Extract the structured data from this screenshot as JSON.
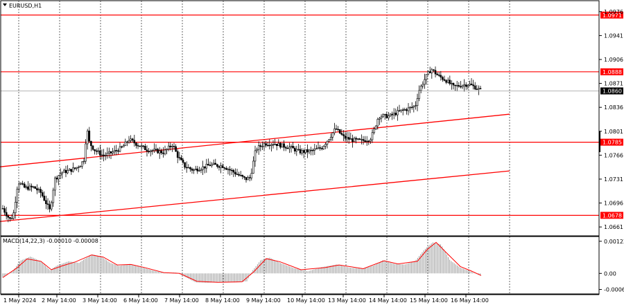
{
  "window": {
    "symbol_label": "EURUSD,H1"
  },
  "indicator": {
    "label": "MACD(14,22,3) -0.00010 -0.00008"
  },
  "colors": {
    "level_line": "#ff0000",
    "candle": "#000000",
    "histogram": "#9a9a9a",
    "signal": "#ff0000",
    "grid": "#000000",
    "current_price": "#9e9e9e"
  },
  "chart_data": [
    {
      "type": "candlestick",
      "title": "EURUSD,H1",
      "price_axis": {
        "range": [
          1.0648,
          1.0992
        ],
        "ticks": [
          "1.0976",
          "1.0941",
          "1.0906",
          "1.0871",
          "1.0836",
          "1.0801",
          "1.0766",
          "1.0731",
          "1.0696",
          "1.0661"
        ]
      },
      "time_axis": {
        "labels": [
          "1 May 2024",
          "2 May 14:00",
          "3 May 14:00",
          "6 May 14:00",
          "7 May 14:00",
          "8 May 14:00",
          "9 May 14:00",
          "10 May 14:00",
          "13 May 14:00",
          "14 May 14:00",
          "15 May 14:00",
          "16 May 14:00"
        ]
      },
      "horizontal_levels": [
        {
          "label": "1.0971",
          "value": 1.0971
        },
        {
          "label": "1.0888",
          "value": 1.0888
        },
        {
          "label": "1.0785",
          "value": 1.0785
        },
        {
          "label": "1.0678",
          "value": 1.0678
        }
      ],
      "current_price": {
        "label": "1.0860",
        "value": 1.086
      },
      "trend_channel": [
        {
          "from": [
            "1 May 2024",
            1.0749
          ],
          "to": [
            "16 May 14:00",
            1.0826
          ]
        },
        {
          "from": [
            "1 May 2024",
            1.0669
          ],
          "to": [
            "16 May 14:00",
            1.0743
          ]
        }
      ],
      "close_path": [
        [
          0,
          1.0688
        ],
        [
          10,
          1.0672
        ],
        [
          15,
          1.0677
        ],
        [
          22,
          1.0727
        ],
        [
          32,
          1.0718
        ],
        [
          45,
          1.0719
        ],
        [
          55,
          1.0711
        ],
        [
          60,
          1.0701
        ],
        [
          68,
          1.0685
        ],
        [
          75,
          1.0731
        ],
        [
          85,
          1.0741
        ],
        [
          95,
          1.0743
        ],
        [
          105,
          1.0747
        ],
        [
          112,
          1.0752
        ],
        [
          118,
          1.0761
        ],
        [
          121,
          1.0807
        ],
        [
          125,
          1.0784
        ],
        [
          132,
          1.0774
        ],
        [
          145,
          1.0765
        ],
        [
          160,
          1.0771
        ],
        [
          172,
          1.0777
        ],
        [
          182,
          1.0789
        ],
        [
          195,
          1.0781
        ],
        [
          208,
          1.0774
        ],
        [
          222,
          1.0772
        ],
        [
          232,
          1.077
        ],
        [
          245,
          1.0782
        ],
        [
          252,
          1.0765
        ],
        [
          262,
          1.075
        ],
        [
          275,
          1.0744
        ],
        [
          288,
          1.0748
        ],
        [
          300,
          1.0752
        ],
        [
          318,
          1.075
        ],
        [
          335,
          1.074
        ],
        [
          350,
          1.0731
        ],
        [
          357,
          1.0733
        ],
        [
          365,
          1.0775
        ],
        [
          378,
          1.0783
        ],
        [
          392,
          1.0783
        ],
        [
          402,
          1.078
        ],
        [
          415,
          1.0777
        ],
        [
          428,
          1.0771
        ],
        [
          445,
          1.0772
        ],
        [
          460,
          1.0777
        ],
        [
          470,
          1.079
        ],
        [
          480,
          1.0805
        ],
        [
          492,
          1.0792
        ],
        [
          505,
          1.0788
        ],
        [
          518,
          1.0787
        ],
        [
          530,
          1.079
        ],
        [
          535,
          1.0801
        ],
        [
          542,
          1.0823
        ],
        [
          558,
          1.0823
        ],
        [
          572,
          1.083
        ],
        [
          585,
          1.0834
        ],
        [
          595,
          1.0838
        ],
        [
          600,
          1.086
        ],
        [
          610,
          1.088
        ],
        [
          618,
          1.0892
        ],
        [
          628,
          1.0882
        ],
        [
          640,
          1.0875
        ],
        [
          650,
          1.0866
        ],
        [
          660,
          1.0868
        ],
        [
          672,
          1.087
        ],
        [
          682,
          1.0865
        ],
        [
          690,
          1.086
        ]
      ]
    },
    {
      "type": "histogram",
      "title": "MACD(14,22,3)",
      "values_label": "-0.00010 -0.00008",
      "y_axis": {
        "range": [
          -0.00078,
          0.0014
        ],
        "ticks": [
          "0.00122",
          "0.00",
          "-0.00061"
        ]
      },
      "histogram_path": [
        [
          0,
          -0.00016
        ],
        [
          15,
          0.0001
        ],
        [
          25,
          0.00048
        ],
        [
          40,
          0.00064
        ],
        [
          55,
          0.00046
        ],
        [
          68,
          0.00012
        ],
        [
          78,
          0.0003
        ],
        [
          95,
          0.00046
        ],
        [
          110,
          0.0004
        ],
        [
          120,
          0.00058
        ],
        [
          130,
          0.00072
        ],
        [
          142,
          0.00064
        ],
        [
          155,
          0.0004
        ],
        [
          168,
          0.00028
        ],
        [
          182,
          0.00036
        ],
        [
          198,
          0.00026
        ],
        [
          215,
          0.00012
        ],
        [
          232,
          2e-05
        ],
        [
          250,
          4e-05
        ],
        [
          262,
          -0.00012
        ],
        [
          278,
          -0.00034
        ],
        [
          295,
          -0.00036
        ],
        [
          315,
          -0.00032
        ],
        [
          335,
          -0.00034
        ],
        [
          352,
          -0.0003
        ],
        [
          360,
          0.0001
        ],
        [
          372,
          0.0005
        ],
        [
          385,
          0.0006
        ],
        [
          400,
          0.0004
        ],
        [
          420,
          0.0002
        ],
        [
          440,
          8e-05
        ],
        [
          460,
          0.00024
        ],
        [
          482,
          0.00034
        ],
        [
          500,
          0.00022
        ],
        [
          520,
          0.00018
        ],
        [
          535,
          0.0003
        ],
        [
          548,
          0.0005
        ],
        [
          565,
          0.00036
        ],
        [
          580,
          0.00034
        ],
        [
          595,
          0.00048
        ],
        [
          608,
          0.0009
        ],
        [
          620,
          0.00118
        ],
        [
          632,
          0.0011
        ],
        [
          645,
          0.0005
        ],
        [
          660,
          0.00022
        ],
        [
          672,
          0.0001
        ],
        [
          685,
          -4e-05
        ],
        [
          690,
          -0.0001
        ]
      ],
      "signal_path": [
        [
          0,
          -0.00016
        ],
        [
          20,
          0.0002
        ],
        [
          35,
          0.00055
        ],
        [
          55,
          0.00046
        ],
        [
          70,
          0.00014
        ],
        [
          85,
          0.00028
        ],
        [
          105,
          0.00044
        ],
        [
          128,
          0.0007
        ],
        [
          145,
          0.00062
        ],
        [
          165,
          0.00032
        ],
        [
          185,
          0.00034
        ],
        [
          205,
          0.00022
        ],
        [
          232,
          3e-05
        ],
        [
          255,
          0.0
        ],
        [
          280,
          -0.0003
        ],
        [
          310,
          -0.00034
        ],
        [
          345,
          -0.00032
        ],
        [
          362,
          6e-05
        ],
        [
          380,
          0.00056
        ],
        [
          400,
          0.00044
        ],
        [
          430,
          0.00014
        ],
        [
          465,
          0.00022
        ],
        [
          485,
          0.00032
        ],
        [
          520,
          0.00018
        ],
        [
          550,
          0.00048
        ],
        [
          570,
          0.00036
        ],
        [
          598,
          0.00046
        ],
        [
          612,
          0.0009
        ],
        [
          625,
          0.00118
        ],
        [
          640,
          0.00078
        ],
        [
          660,
          0.00026
        ],
        [
          675,
          0.0001
        ],
        [
          690,
          -8e-05
        ]
      ]
    }
  ]
}
